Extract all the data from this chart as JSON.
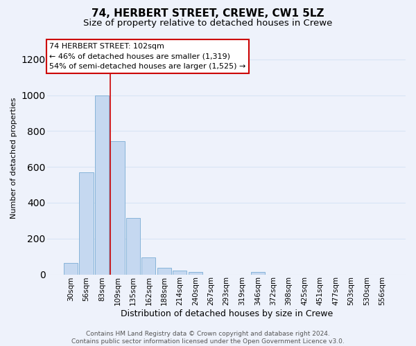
{
  "title": "74, HERBERT STREET, CREWE, CW1 5LZ",
  "subtitle": "Size of property relative to detached houses in Crewe",
  "xlabel": "Distribution of detached houses by size in Crewe",
  "ylabel": "Number of detached properties",
  "bar_color": "#c5d8f0",
  "bar_edge_color": "#7aadd4",
  "categories": [
    "30sqm",
    "56sqm",
    "83sqm",
    "109sqm",
    "135sqm",
    "162sqm",
    "188sqm",
    "214sqm",
    "240sqm",
    "267sqm",
    "293sqm",
    "319sqm",
    "346sqm",
    "372sqm",
    "398sqm",
    "425sqm",
    "451sqm",
    "477sqm",
    "503sqm",
    "530sqm",
    "556sqm"
  ],
  "values": [
    65,
    570,
    1000,
    745,
    315,
    95,
    38,
    22,
    15,
    0,
    0,
    0,
    15,
    0,
    0,
    0,
    0,
    0,
    0,
    0,
    0
  ],
  "ylim": [
    0,
    1300
  ],
  "yticks": [
    0,
    200,
    400,
    600,
    800,
    1000,
    1200
  ],
  "annotation_line1": "74 HERBERT STREET: 102sqm",
  "annotation_line2": "← 46% of detached houses are smaller (1,319)",
  "annotation_line3": "54% of semi-detached houses are larger (1,525) →",
  "vline_x": 3.0,
  "vline_color": "#cc0000",
  "background_color": "#eef2fb",
  "footer_text": "Contains HM Land Registry data © Crown copyright and database right 2024.\nContains public sector information licensed under the Open Government Licence v3.0.",
  "grid_color": "#d8e4f5",
  "title_fontsize": 11,
  "subtitle_fontsize": 9.5,
  "xlabel_fontsize": 9,
  "ylabel_fontsize": 8,
  "tick_fontsize": 7.5,
  "annotation_fontsize": 8,
  "footer_fontsize": 6.5
}
